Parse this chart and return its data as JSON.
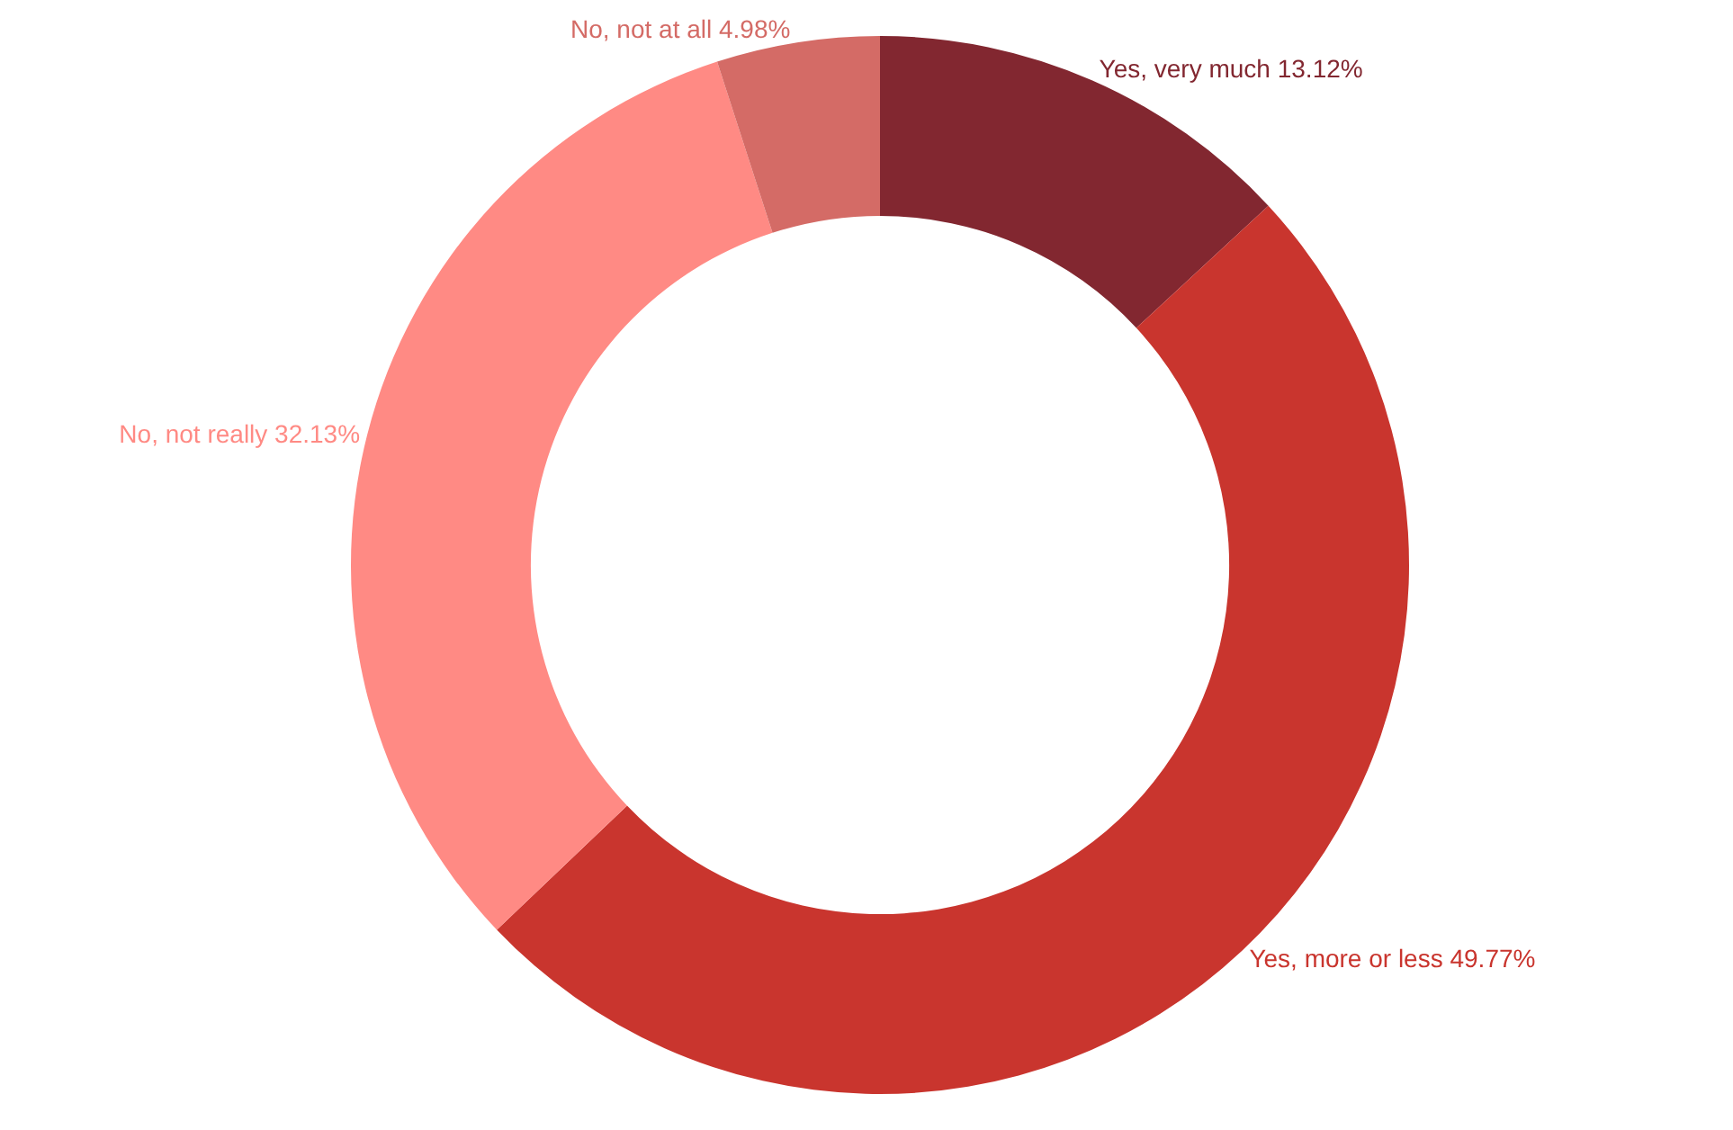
{
  "chart_data": {
    "type": "donut",
    "categories": [
      "Yes, very much",
      "Yes, more or less",
      "No, not really",
      "No, not at all"
    ],
    "values": [
      13.12,
      49.77,
      32.13,
      4.98
    ],
    "value_labels": [
      "13.12%",
      "49.77%",
      "32.13%",
      "4.98%"
    ],
    "colors": [
      "#822730",
      "#c9352e",
      "#ff8a84",
      "#d46b66"
    ],
    "legend": false
  }
}
